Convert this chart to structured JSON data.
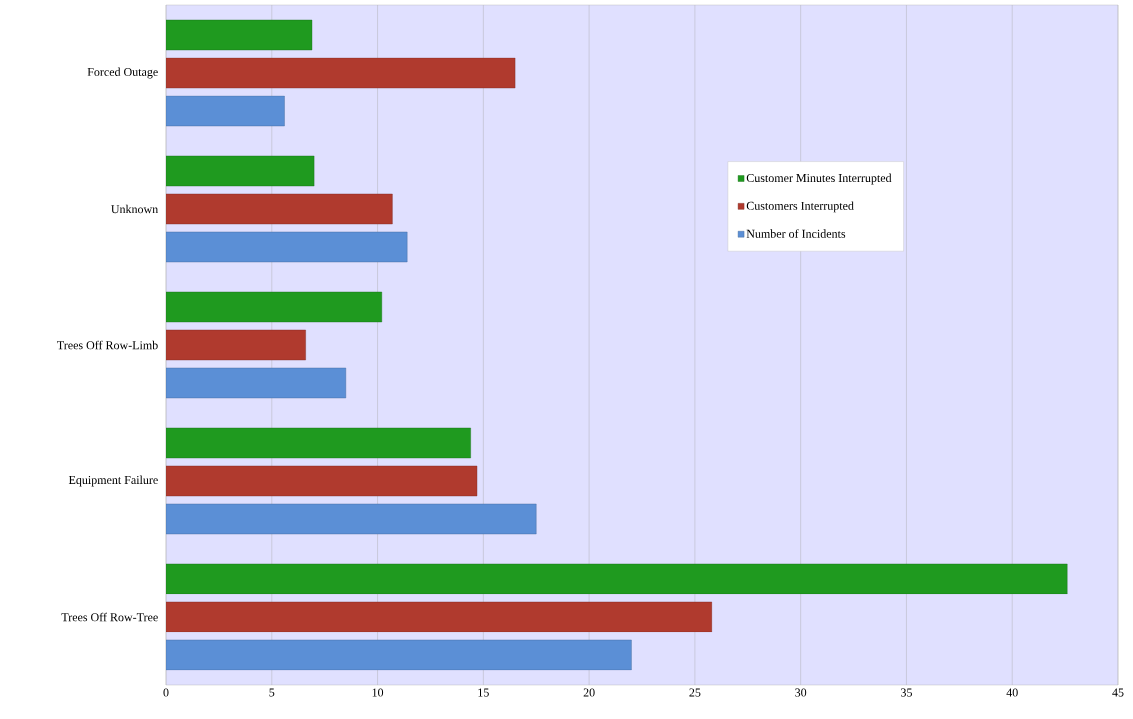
{
  "chart_data": {
    "type": "bar",
    "orientation": "horizontal",
    "categories": [
      "Forced Outage",
      "Unknown",
      "Trees Off Row-Limb",
      "Equipment Failure",
      "Trees Off Row-Tree"
    ],
    "series": [
      {
        "name": "Customer Minutes Interrupted",
        "color": "#1f9a1f",
        "values": [
          6.9,
          7.0,
          10.2,
          14.4,
          42.6
        ]
      },
      {
        "name": "Customers Interrupted",
        "color": "#b03a2e",
        "values": [
          16.5,
          10.7,
          6.6,
          14.7,
          25.8
        ]
      },
      {
        "name": "Number of Incidents",
        "color": "#5b8fd6",
        "values": [
          5.6,
          11.4,
          8.5,
          17.5,
          22.0
        ]
      }
    ],
    "xlim": [
      0,
      45
    ],
    "xticks": [
      0,
      5,
      10,
      15,
      20,
      25,
      30,
      35,
      40,
      45
    ],
    "grid": "x",
    "legend": "top right"
  }
}
